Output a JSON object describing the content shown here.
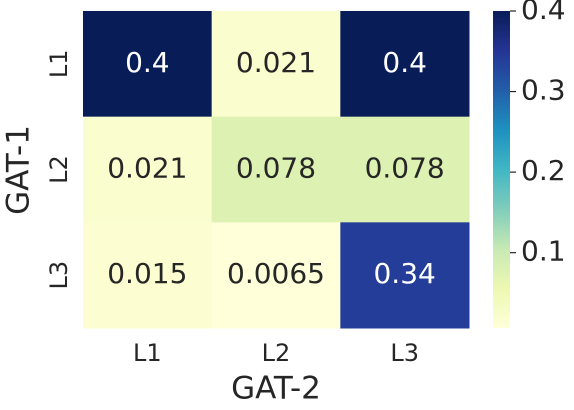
{
  "chart_data": {
    "type": "heatmap",
    "x_label": "GAT-2",
    "y_label": "GAT-1",
    "x_categories": [
      "L1",
      "L2",
      "L3"
    ],
    "y_categories": [
      "L1",
      "L2",
      "L3"
    ],
    "values": [
      [
        0.4,
        0.021,
        0.4
      ],
      [
        0.021,
        0.078,
        0.078
      ],
      [
        0.015,
        0.0065,
        0.34
      ]
    ],
    "colormap": "YlGnBu",
    "clim": [
      0.0065,
      0.4
    ],
    "cticks": [
      0.1,
      0.2,
      0.3,
      0.4
    ]
  }
}
